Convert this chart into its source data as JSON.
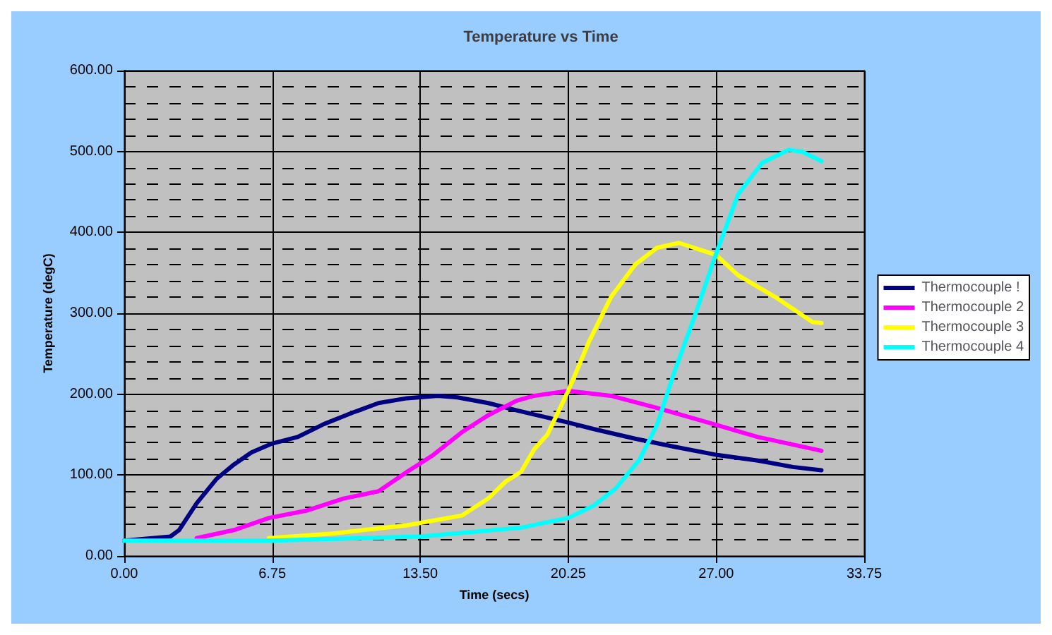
{
  "chart_data": {
    "type": "line",
    "title": "Temperature vs Time",
    "xlabel": "Time (secs)",
    "ylabel": "Temperature (degC)",
    "xlim": [
      0,
      33.75
    ],
    "xticks": [
      {
        "value": 0,
        "label": "0.00"
      },
      {
        "value": 6.75,
        "label": "6.75"
      },
      {
        "value": 13.5,
        "label": "13.50"
      },
      {
        "value": 20.25,
        "label": "20.25"
      },
      {
        "value": 27,
        "label": "27.00"
      },
      {
        "value": 33.75,
        "label": "33.75"
      }
    ],
    "ylim": [
      0,
      600
    ],
    "yticks": [
      {
        "value": 0,
        "label": "0.00"
      },
      {
        "value": 100,
        "label": "100.00"
      },
      {
        "value": 200,
        "label": "200.00"
      },
      {
        "value": 300,
        "label": "300.00"
      },
      {
        "value": 400,
        "label": "400.00"
      },
      {
        "value": 500,
        "label": "500.00"
      },
      {
        "value": 600,
        "label": "600.00"
      }
    ],
    "grid": true,
    "legend": "right",
    "marker": "none",
    "line_style": "solid",
    "series": [
      {
        "name": "Thermocouple !",
        "color": "#000080",
        "x": [
          0,
          2.1,
          2.5,
          3.3,
          4.2,
          5.0,
          5.8,
          6.75,
          7.9,
          9.1,
          10.4,
          11.6,
          12.9,
          14.3,
          15.2,
          16.6,
          17.9,
          19.3,
          20.25,
          21.4,
          23.3,
          25.1,
          27,
          28.9,
          30.5,
          31.8
        ],
        "values": [
          19,
          24,
          32,
          65,
          95,
          113,
          128,
          139,
          147,
          163,
          177,
          189,
          195,
          198,
          196,
          189,
          180,
          171,
          165,
          157,
          145,
          135,
          125,
          118,
          110,
          106
        ]
      },
      {
        "name": "Thermocouple 2",
        "color": "#ff00ff",
        "x": [
          3.3,
          5,
          6.6,
          8.3,
          10,
          11.6,
          12.9,
          14.1,
          15.4,
          16.6,
          17.9,
          18.7,
          20.25,
          22.2,
          24.3,
          27,
          28.9,
          31.8
        ],
        "values": [
          22,
          32,
          47,
          56,
          71,
          80,
          104,
          125,
          153,
          174,
          192,
          198,
          204,
          198,
          183,
          162,
          147,
          130
        ]
      },
      {
        "name": "Thermocouple 3",
        "color": "#ffff00",
        "x": [
          6.6,
          9.6,
          12.9,
          15.4,
          16.6,
          17.4,
          18.1,
          18.7,
          19.3,
          20.25,
          21.2,
          22.2,
          23.3,
          24.3,
          25.3,
          27,
          28,
          29.7,
          31.4,
          31.8
        ],
        "values": [
          22,
          28,
          38,
          50,
          71,
          92,
          104,
          132,
          150,
          204,
          265,
          320,
          360,
          381,
          387,
          372,
          347,
          320,
          289,
          288
        ]
      },
      {
        "name": "Thermocouple 4",
        "color": "#00ffff",
        "x": [
          0,
          6.75,
          13.5,
          18.1,
          20.25,
          21.4,
          22.4,
          23.5,
          24.3,
          25.1,
          26,
          27,
          28,
          29.1,
          30.3,
          30.9,
          31.8
        ],
        "values": [
          19,
          19,
          24,
          35,
          47,
          62,
          83,
          119,
          162,
          228,
          295,
          374,
          447,
          486,
          502,
          500,
          488
        ]
      }
    ]
  }
}
